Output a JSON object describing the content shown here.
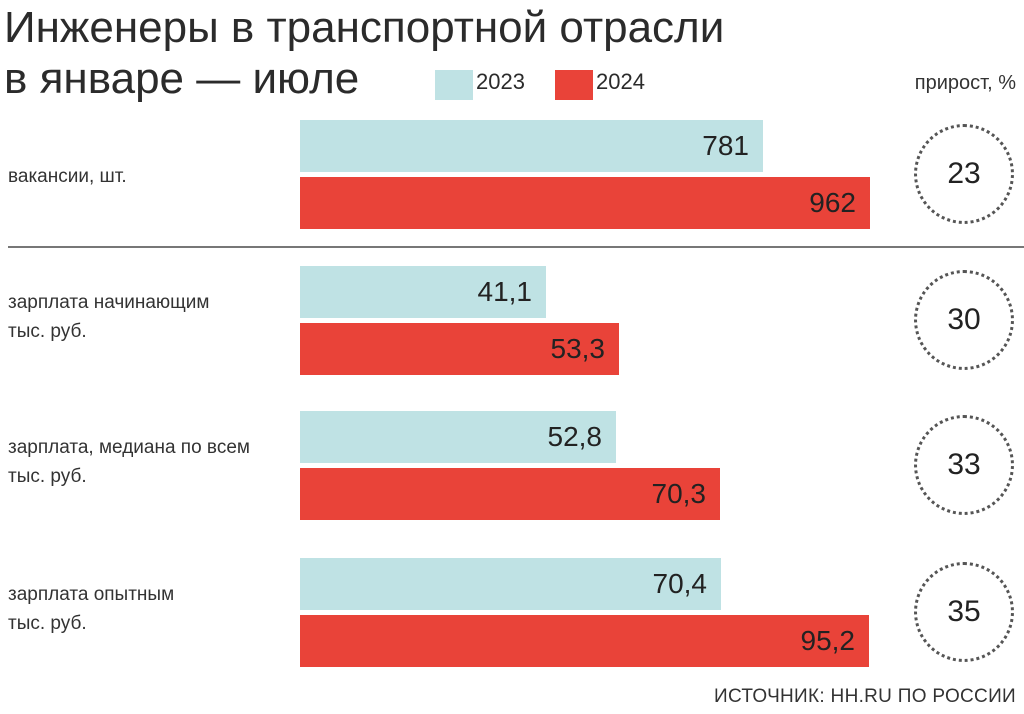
{
  "chart_data": {
    "type": "bar",
    "title_line1": "Инженеры в транспортной отрасли",
    "title_line2": "в январе — июле",
    "growth_header": "прирост, %",
    "source": "ИСТОЧНИК: HH.RU ПО РОССИИ",
    "series": [
      {
        "name": "2023",
        "color": "#bfe2e4"
      },
      {
        "name": "2024",
        "color": "#e94339"
      }
    ],
    "categories": [
      {
        "label_line1": "вакансии, шт.",
        "label_line2": "",
        "values": [
          781,
          962
        ],
        "display": [
          "781",
          "962"
        ],
        "growth": "23",
        "scale_max": 1080
      },
      {
        "label_line1": "зарплата начинающим",
        "label_line2": "тыс. руб.",
        "values": [
          41.1,
          53.3
        ],
        "display": [
          "41,1",
          "53,3"
        ],
        "growth": "30",
        "scale_max": 107
      },
      {
        "label_line1": "зарплата, медиана по всем",
        "label_line2": "тыс. руб.",
        "values": [
          52.8,
          70.3
        ],
        "display": [
          "52,8",
          "70,3"
        ],
        "growth": "33",
        "scale_max": 107
      },
      {
        "label_line1": "зарплата опытным",
        "label_line2": "тыс. руб.",
        "values": [
          70.4,
          95.2
        ],
        "display": [
          "70,4",
          "95,2"
        ],
        "growth": "35",
        "scale_max": 107
      }
    ]
  }
}
